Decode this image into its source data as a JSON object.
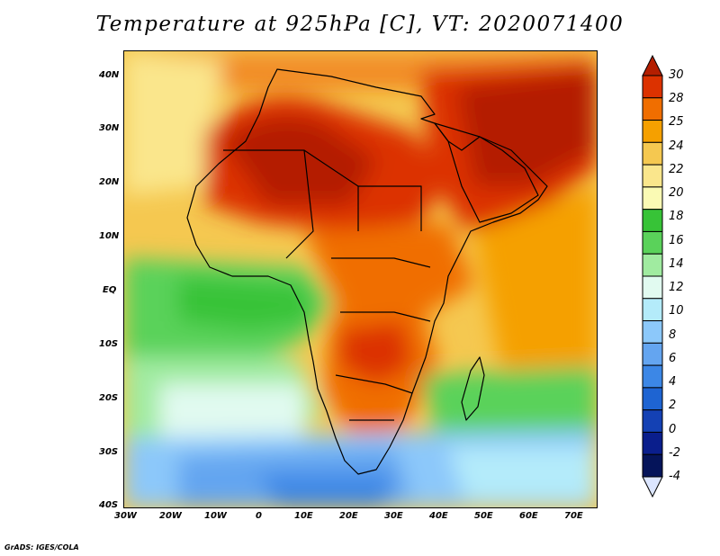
{
  "title": "Temperature at 925hPa [C], VT: 2020071400",
  "credit": "GrADS: IGES/COLA",
  "map": {
    "lon_labels": [
      "30W",
      "20W",
      "10W",
      "0",
      "10E",
      "20E",
      "30E",
      "40E",
      "50E",
      "60E",
      "70E"
    ],
    "lat_labels": [
      "40N",
      "30N",
      "20N",
      "10N",
      "EQ",
      "10S",
      "20S",
      "30S",
      "40S"
    ]
  },
  "colorbar": {
    "labels": [
      "30",
      "28",
      "25",
      "24",
      "22",
      "20",
      "18",
      "16",
      "14",
      "12",
      "10",
      "8",
      "6",
      "4",
      "2",
      "0",
      "-2",
      "-4"
    ],
    "colors": [
      "#b41e00",
      "#dc3200",
      "#f06e00",
      "#f5a000",
      "#f5c850",
      "#fae68c",
      "#fafab4",
      "#37c337",
      "#5ad25a",
      "#a0eba0",
      "#e1faf0",
      "#b4ebfa",
      "#8cc8fa",
      "#64a5f0",
      "#3c87e6",
      "#1e64d2",
      "#1441b4",
      "#0a1e8c",
      "#05145a"
    ],
    "over_color": "#b41e00",
    "under_color": "#dce6ff"
  }
}
